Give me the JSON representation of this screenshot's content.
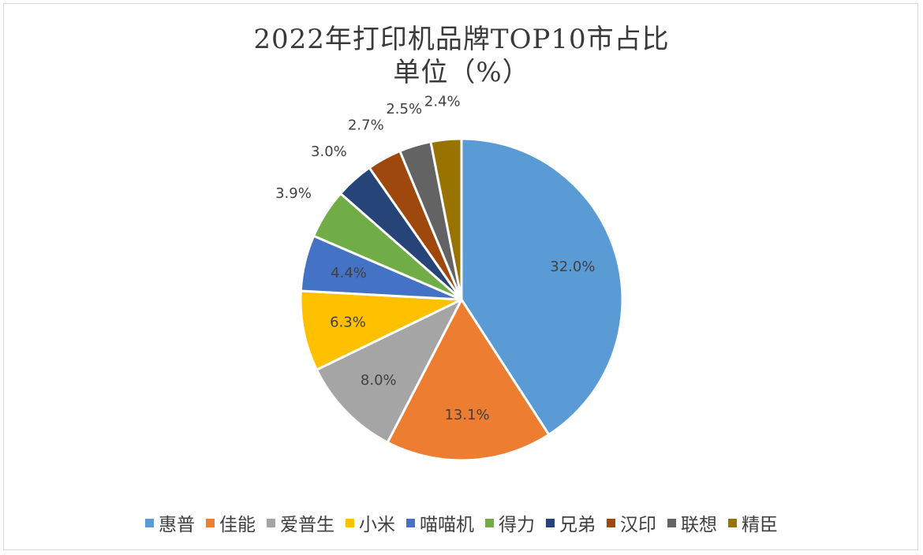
{
  "chart_data": {
    "type": "pie",
    "title": "2022年打印机品牌TOP10市占比",
    "subtitle": "单位（%）",
    "categories": [
      "惠普",
      "佳能",
      "爱普生",
      "小米",
      "喵喵机",
      "得力",
      "兄弟",
      "汉印",
      "联想",
      "精臣"
    ],
    "values": [
      32.0,
      13.1,
      8.0,
      6.3,
      4.4,
      3.9,
      3.0,
      2.7,
      2.5,
      2.4
    ],
    "data_labels": [
      "32.0%",
      "13.1%",
      "8.0%",
      "6.3%",
      "4.4%",
      "3.9%",
      "3.0%",
      "2.7%",
      "2.5%",
      "2.4%"
    ],
    "colors": [
      "#5b9bd5",
      "#ed7d31",
      "#a5a5a5",
      "#ffc000",
      "#4472c4",
      "#70ad47",
      "#264478",
      "#9e480e",
      "#636363",
      "#997300"
    ],
    "legend_position": "bottom",
    "grid": false
  }
}
